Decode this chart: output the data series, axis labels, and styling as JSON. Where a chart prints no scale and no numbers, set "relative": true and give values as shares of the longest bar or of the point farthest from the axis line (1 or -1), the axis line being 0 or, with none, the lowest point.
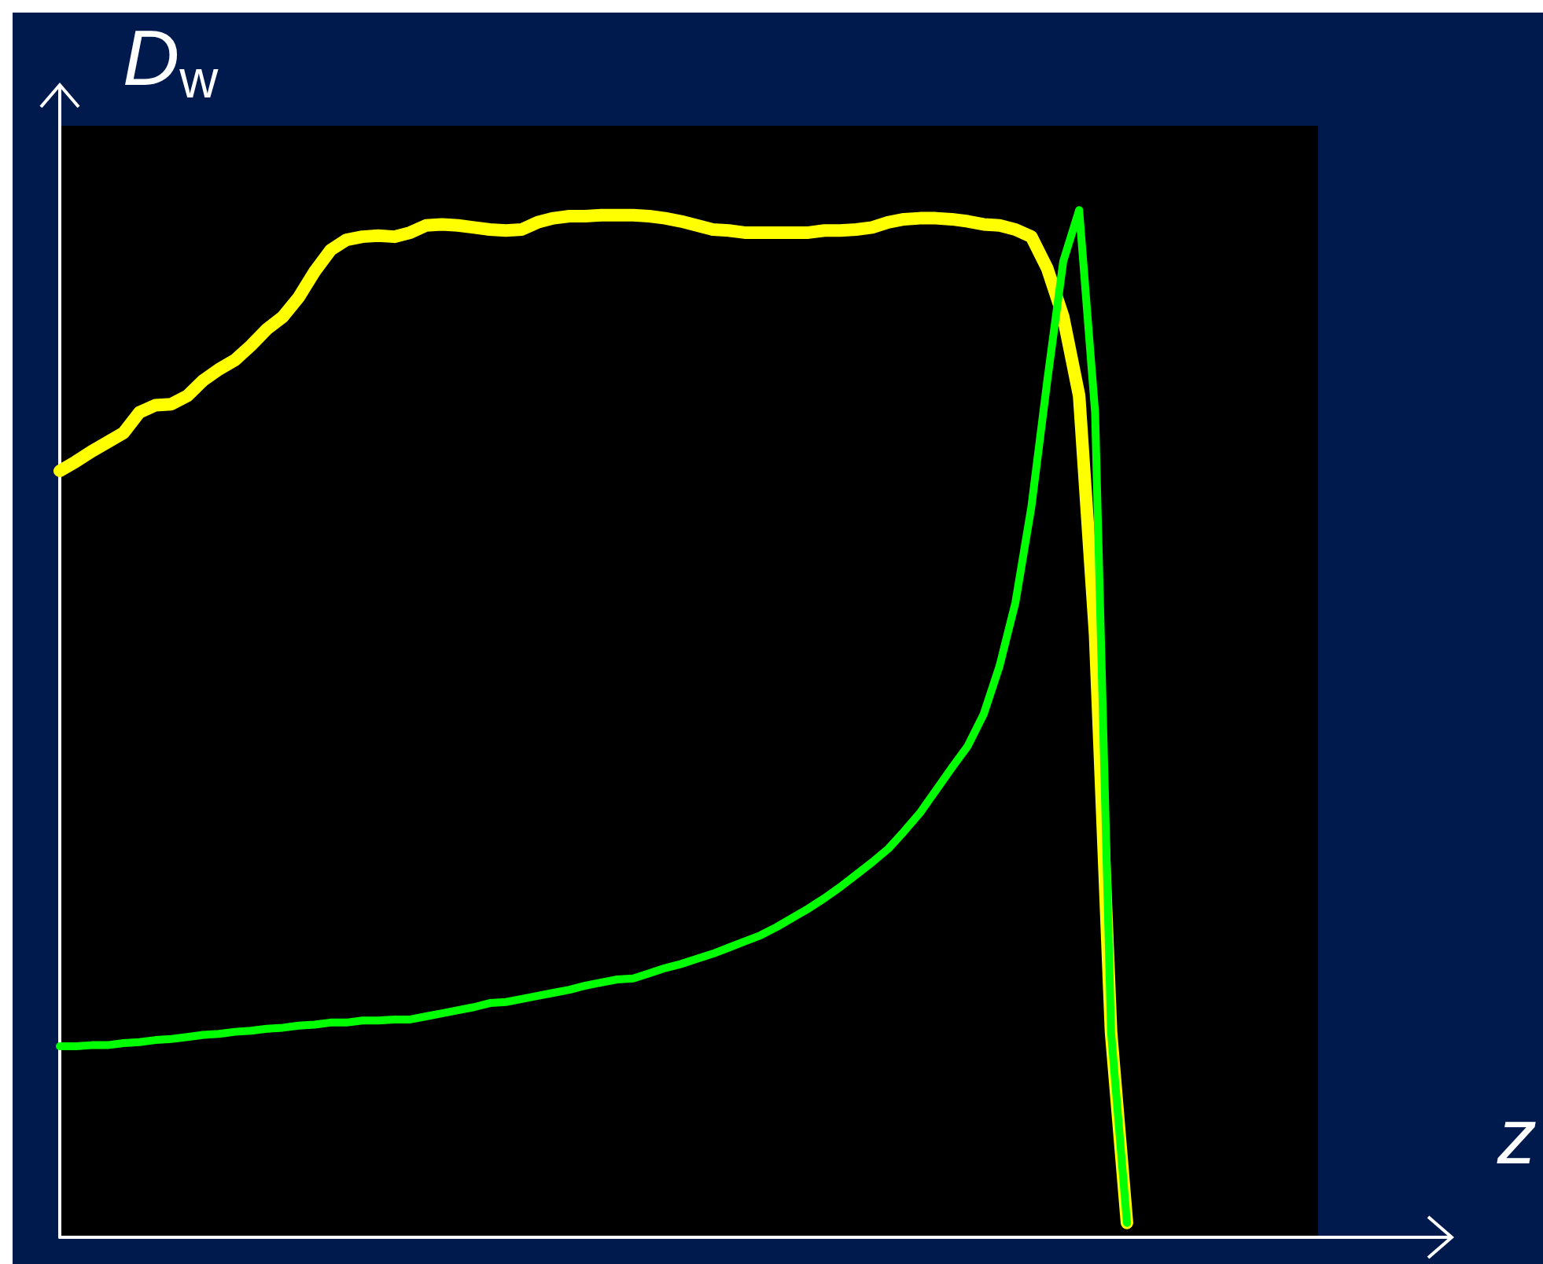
{
  "chart_data": {
    "type": "line",
    "relative": true,
    "xlabel": "z",
    "ylabel": "D$_{w}$",
    "grid": false,
    "categories": [
      null,
      null,
      null,
      null,
      null,
      null,
      null,
      null,
      null,
      null,
      null,
      null,
      null,
      null,
      null,
      null,
      null,
      null,
      null,
      null,
      null,
      null,
      null,
      null,
      null,
      null,
      null,
      null,
      null,
      null,
      null,
      null,
      null,
      null,
      null,
      null,
      null,
      null,
      null,
      null,
      null,
      null,
      null,
      null,
      null,
      null,
      null,
      null,
      null,
      null,
      null,
      null,
      null,
      null,
      null,
      null,
      null,
      null,
      null,
      null,
      null,
      null,
      null,
      null,
      null,
      null,
      null,
      null,
      null,
      null,
      null,
      null,
      null,
      null,
      null,
      null,
      null,
      null,
      null,
      null
    ],
    "series": [
      {
        "color": "#ffff00",
        "values": [
          0.746,
          0.755,
          0.765,
          0.774,
          0.783,
          0.803,
          0.81,
          0.811,
          0.819,
          0.834,
          0.845,
          0.854,
          0.868,
          0.884,
          0.896,
          0.915,
          0.94,
          0.961,
          0.971,
          0.974,
          0.975,
          0.974,
          0.978,
          0.985,
          0.986,
          0.985,
          0.983,
          0.981,
          0.98,
          0.981,
          0.988,
          0.992,
          0.994,
          0.994,
          0.995,
          0.995,
          0.995,
          0.994,
          0.992,
          0.989,
          0.985,
          0.981,
          0.98,
          0.978,
          0.978,
          0.978,
          0.978,
          0.978,
          0.98,
          0.98,
          0.981,
          0.983,
          0.988,
          0.991,
          0.992,
          0.992,
          0.991,
          0.989,
          0.986,
          0.985,
          0.981,
          0.974,
          0.943,
          0.896,
          0.819,
          0.587,
          0.2,
          0.014,
          null,
          null,
          null,
          null,
          null,
          null,
          null,
          null,
          null,
          null,
          null,
          null
        ]
      },
      {
        "color": "#00ff00",
        "values": [
          0.186,
          0.186,
          0.187,
          0.187,
          0.189,
          0.19,
          0.192,
          0.193,
          0.195,
          0.197,
          0.198,
          0.2,
          0.201,
          0.203,
          0.204,
          0.206,
          0.207,
          0.209,
          0.209,
          0.211,
          0.211,
          0.212,
          0.212,
          0.215,
          0.218,
          0.221,
          0.224,
          0.228,
          0.229,
          0.232,
          0.235,
          0.238,
          0.241,
          0.245,
          0.248,
          0.251,
          0.252,
          0.257,
          0.262,
          0.266,
          0.271,
          0.276,
          0.282,
          0.288,
          0.294,
          0.302,
          0.311,
          0.32,
          0.33,
          0.341,
          0.353,
          0.365,
          0.378,
          0.395,
          0.413,
          0.435,
          0.457,
          0.478,
          0.509,
          0.556,
          0.618,
          0.711,
          0.834,
          0.95,
          1.0,
          0.803,
          0.2,
          0.014,
          null,
          null,
          null,
          null,
          null,
          null,
          null,
          null,
          null,
          null,
          null,
          null
        ]
      }
    ]
  }
}
